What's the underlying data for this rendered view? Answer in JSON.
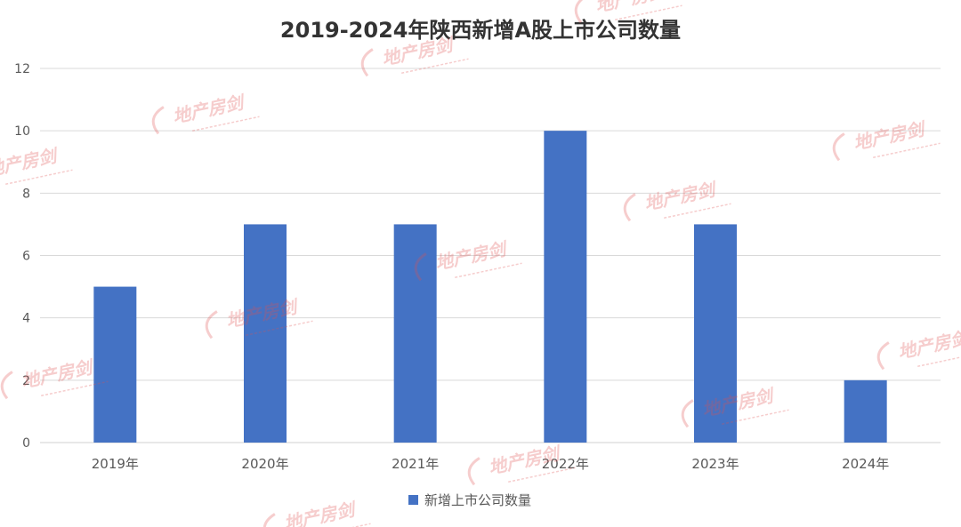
{
  "chart_data": {
    "type": "bar",
    "title": "2019-2024年陕西新增A股上市公司数量",
    "categories": [
      "2019年",
      "2020年",
      "2021年",
      "2022年",
      "2023年",
      "2024年"
    ],
    "series": [
      {
        "name": "新增上市公司数量",
        "values": [
          5,
          7,
          7,
          10,
          7,
          2
        ]
      }
    ],
    "ylim": [
      0,
      12
    ],
    "yticks": [
      0,
      2,
      4,
      6,
      8,
      10,
      12
    ],
    "grid": true,
    "legend": "bottom",
    "colors": {
      "bar": "#4472c4",
      "grid": "#d9d9d9",
      "axis_text": "#595959",
      "title": "#333333",
      "watermark": "#e05050"
    }
  },
  "watermark": {
    "brand": "地产房剑"
  }
}
